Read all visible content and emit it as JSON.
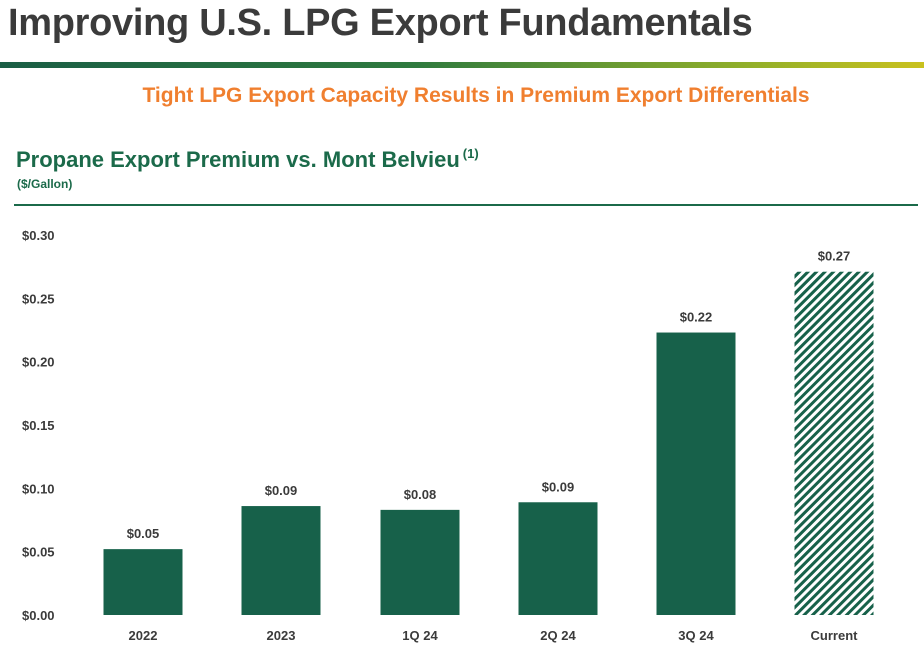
{
  "header": {
    "title": "Improving U.S. LPG Export Fundamentals",
    "subtitle": "Tight LPG Export Capacity Results in Premium Export Differentials"
  },
  "chart_data": {
    "type": "bar",
    "title": "Propane Export Premium vs. Mont Belvieu",
    "title_footnote": "(1)",
    "ylabel": "($/Gallon)",
    "xlabel": "",
    "categories": [
      "2022",
      "2023",
      "1Q 24",
      "2Q 24",
      "3Q 24",
      "Current"
    ],
    "values": [
      0.05,
      0.09,
      0.08,
      0.09,
      0.22,
      0.27
    ],
    "bar_heights_estimated": [
      0.052,
      0.086,
      0.083,
      0.089,
      0.223,
      0.271
    ],
    "data_labels": [
      "$0.05",
      "$0.09",
      "$0.08",
      "$0.09",
      "$0.22",
      "$0.27"
    ],
    "ylim": [
      0,
      0.3
    ],
    "yticks": [
      0.0,
      0.05,
      0.1,
      0.15,
      0.2,
      0.25,
      0.3
    ],
    "ytick_labels": [
      "$0.00",
      "$0.05",
      "$0.10",
      "$0.15",
      "$0.20",
      "$0.25",
      "$0.30"
    ],
    "grid": false,
    "legend": "none",
    "bar_color": "#17614a",
    "hatched_categories": [
      "Current"
    ]
  }
}
